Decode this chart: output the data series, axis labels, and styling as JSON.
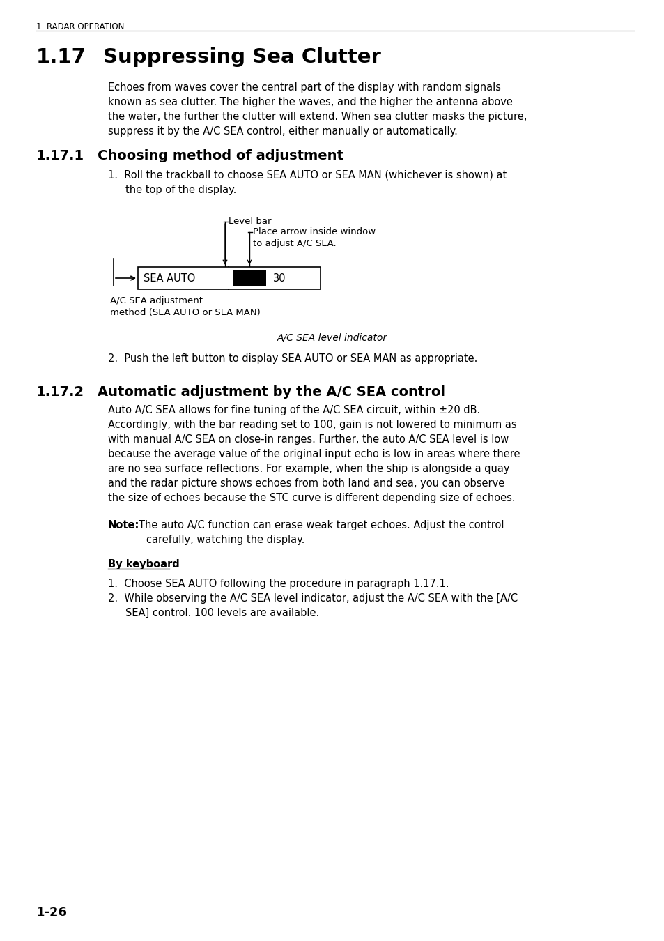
{
  "bg_color": "#ffffff",
  "page_header": "1. RADAR OPERATION",
  "section_num": "1.17",
  "section_title": "Suppressing Sea Clutter",
  "intro_lines": [
    "Echoes from waves cover the central part of the display with random signals",
    "known as sea clutter. The higher the waves, and the higher the antenna above",
    "the water, the further the clutter will extend. When sea clutter masks the picture,",
    "suppress it by the A/C SEA control, either manually or automatically."
  ],
  "sub1_num": "1.17.1",
  "sub1_title": "Choosing method of adjustment",
  "step1_line1": "Roll the trackball to choose SEA AUTO or SEA MAN (whichever is shown) at",
  "step1_line2": "the top of the display.",
  "label_level_bar": "Level bar",
  "label_place_1": "Place arrow inside window",
  "label_place_2": "to adjust A/C SEA.",
  "sea_auto_text": "SEA AUTO",
  "num_30": "30",
  "ac_label_1": "A/C SEA adjustment",
  "ac_label_2": "method (SEA AUTO or SEA MAN)",
  "caption": "A/C SEA level indicator",
  "step2_text": "Push the left button to display SEA AUTO or SEA MAN as appropriate.",
  "sub2_num": "1.17.2",
  "sub2_title": "Automatic adjustment by the A/C SEA control",
  "auto_lines": [
    "Auto A/C SEA allows for fine tuning of the A/C SEA circuit, within ±20 dB.",
    "Accordingly, with the bar reading set to 100, gain is not lowered to minimum as",
    "with manual A/C SEA on close-in ranges. Further, the auto A/C SEA level is low",
    "because the average value of the original input echo is low in areas where there",
    "are no sea surface reflections. For example, when the ship is alongside a quay",
    "and the radar picture shows echoes from both land and sea, you can observe",
    "the size of echoes because the STC curve is different depending size of echoes."
  ],
  "note_bold": "Note:",
  "note_line1": "The auto A/C function can erase weak target echoes. Adjust the control",
  "note_line2": "carefully, watching the display.",
  "by_keyboard": "By keyboard",
  "kb1": "Choose SEA AUTO following the procedure in paragraph 1.17.1.",
  "kb2_line1": "While observing the A/C SEA level indicator, adjust the A/C SEA with the [A/C",
  "kb2_line2": "SEA] control. 100 levels are available.",
  "page_num": "1-26"
}
